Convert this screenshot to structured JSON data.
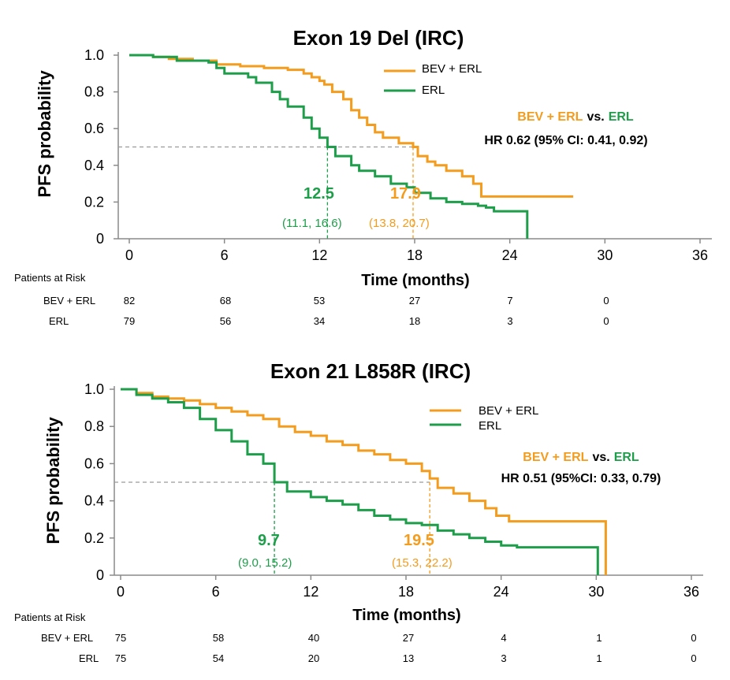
{
  "colors": {
    "bev_erl": "#F39C1E",
    "erl": "#1E9E4A",
    "ref": "#9a9a9a"
  },
  "chart_data": [
    {
      "type": "line",
      "title": "Exon 19 Del (IRC)",
      "xlabel": "Time (months)",
      "ylabel": "PFS probability",
      "xlim": [
        0,
        36
      ],
      "ylim": [
        0,
        1
      ],
      "xticks": [
        "0",
        "6",
        "12",
        "18",
        "24",
        "30",
        "36"
      ],
      "yticks": [
        "0",
        "0.2",
        "0.4",
        "0.6",
        "0.8",
        "1.0"
      ],
      "legend": [
        "BEV + ERL",
        "ERL"
      ],
      "hr": {
        "arm1": "BEV + ERL",
        "vs": "vs.",
        "arm2": "ERL",
        "text": "HR 0.62 (95% CI: 0.41, 0.92)"
      },
      "medians": [
        {
          "series": "ERL",
          "value": 12.5,
          "label": "12.5",
          "ci": "(11.1, 16.6)"
        },
        {
          "series": "BEV + ERL",
          "value": 17.9,
          "label": "17.9",
          "ci": "(13.8, 20.7)"
        }
      ],
      "series": [
        {
          "name": "BEV + ERL",
          "x": [
            0,
            1.5,
            2.5,
            4,
            5.5,
            7,
            8.5,
            10,
            11,
            11.5,
            12,
            12.3,
            12.8,
            13.5,
            14,
            14.5,
            15,
            15.5,
            16,
            17,
            17.9,
            18.2,
            18.8,
            19.3,
            20,
            21,
            21.7,
            22.2,
            24,
            28
          ],
          "y": [
            1.0,
            0.99,
            0.98,
            0.97,
            0.95,
            0.94,
            0.93,
            0.92,
            0.9,
            0.88,
            0.86,
            0.84,
            0.8,
            0.76,
            0.7,
            0.66,
            0.62,
            0.58,
            0.55,
            0.52,
            0.5,
            0.45,
            0.42,
            0.4,
            0.37,
            0.34,
            0.3,
            0.23,
            0.23,
            0.23
          ]
        },
        {
          "name": "ERL",
          "x": [
            0,
            1.5,
            3,
            5,
            5.5,
            6,
            7.5,
            8,
            9,
            9.5,
            10,
            11,
            11.5,
            12,
            12.5,
            13,
            14,
            14.5,
            15.5,
            16.5,
            17.5,
            18,
            19,
            20,
            21,
            22,
            22.5,
            23,
            25,
            25.1
          ],
          "y": [
            1.0,
            0.99,
            0.97,
            0.96,
            0.93,
            0.9,
            0.88,
            0.85,
            0.8,
            0.76,
            0.72,
            0.66,
            0.6,
            0.55,
            0.5,
            0.45,
            0.4,
            0.37,
            0.34,
            0.3,
            0.28,
            0.25,
            0.22,
            0.2,
            0.19,
            0.18,
            0.17,
            0.15,
            0.15,
            0.0
          ]
        }
      ],
      "at_risk": {
        "header": "Patients at Risk",
        "rows": [
          {
            "label": "BEV + ERL",
            "values": [
              "82",
              "68",
              "53",
              "27",
              "7",
              "0"
            ]
          },
          {
            "label": "ERL",
            "values": [
              "79",
              "56",
              "34",
              "18",
              "3",
              "0"
            ]
          }
        ]
      }
    },
    {
      "type": "line",
      "title": "Exon 21 L858R (IRC)",
      "xlabel": "Time (months)",
      "ylabel": "PFS probability",
      "xlim": [
        0,
        36
      ],
      "ylim": [
        0,
        1
      ],
      "xticks": [
        "0",
        "6",
        "12",
        "18",
        "24",
        "30",
        "36"
      ],
      "yticks": [
        "0",
        "0.2",
        "0.4",
        "0.6",
        "0.8",
        "1.0"
      ],
      "legend": [
        "BEV + ERL",
        "ERL"
      ],
      "hr": {
        "arm1": "BEV + ERL",
        "vs": "vs.",
        "arm2": "ERL",
        "text": "HR 0.51 (95%CI: 0.33, 0.79)"
      },
      "medians": [
        {
          "series": "ERL",
          "value": 9.7,
          "label": "9.7",
          "ci": "(9.0, 15.2)"
        },
        {
          "series": "BEV + ERL",
          "value": 19.5,
          "label": "19.5",
          "ci": "(15.3, 22.2)"
        }
      ],
      "series": [
        {
          "name": "BEV + ERL",
          "x": [
            0,
            1,
            2,
            3,
            4,
            5,
            6,
            7,
            8,
            9,
            10,
            11,
            12,
            13,
            14,
            15,
            16,
            17,
            18,
            19,
            19.5,
            20,
            21,
            22,
            23,
            23.7,
            24.5,
            30.5,
            30.6
          ],
          "y": [
            1.0,
            0.98,
            0.96,
            0.95,
            0.94,
            0.92,
            0.9,
            0.88,
            0.86,
            0.84,
            0.8,
            0.77,
            0.75,
            0.72,
            0.7,
            0.67,
            0.65,
            0.62,
            0.6,
            0.56,
            0.52,
            0.47,
            0.44,
            0.4,
            0.36,
            0.32,
            0.29,
            0.29,
            0.0
          ]
        },
        {
          "name": "ERL",
          "x": [
            0,
            1,
            2,
            3,
            4,
            5,
            6,
            7,
            8,
            9,
            9.7,
            10.5,
            12,
            13,
            14,
            15,
            16,
            17,
            18,
            19,
            20,
            21,
            22,
            23,
            24,
            25,
            30,
            30.1
          ],
          "y": [
            1.0,
            0.97,
            0.95,
            0.93,
            0.9,
            0.84,
            0.78,
            0.72,
            0.65,
            0.6,
            0.5,
            0.45,
            0.42,
            0.4,
            0.38,
            0.35,
            0.32,
            0.3,
            0.28,
            0.27,
            0.24,
            0.22,
            0.2,
            0.18,
            0.16,
            0.15,
            0.15,
            0.0
          ]
        }
      ],
      "at_risk": {
        "header": "Patients at Risk",
        "rows": [
          {
            "label": "BEV + ERL",
            "values": [
              "75",
              "58",
              "40",
              "27",
              "4",
              "1",
              "0"
            ]
          },
          {
            "label": "ERL",
            "values": [
              "75",
              "54",
              "20",
              "13",
              "3",
              "1",
              "0"
            ]
          }
        ]
      }
    }
  ]
}
